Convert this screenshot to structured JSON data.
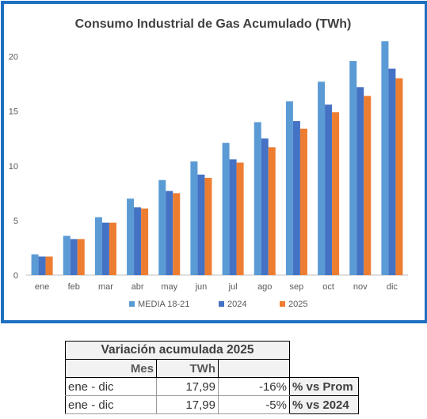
{
  "chart_data": {
    "type": "bar",
    "title": "Consumo Industrial de Gas Acumulado (TWh)",
    "xlabel": "",
    "ylabel": "",
    "categories": [
      "ene",
      "feb",
      "mar",
      "abr",
      "may",
      "jun",
      "jul",
      "ago",
      "sep",
      "oct",
      "nov",
      "dic"
    ],
    "series": [
      {
        "name": "MEDIA 18-21",
        "color": "#5b9bd5",
        "values": [
          1.9,
          3.6,
          5.3,
          7.0,
          8.7,
          10.4,
          12.1,
          14.0,
          15.9,
          17.7,
          19.6,
          21.4
        ]
      },
      {
        "name": "2024",
        "color": "#4472c4",
        "values": [
          1.7,
          3.3,
          4.8,
          6.2,
          7.7,
          9.2,
          10.6,
          12.5,
          14.1,
          15.6,
          17.2,
          18.9
        ]
      },
      {
        "name": "2025",
        "color": "#ed7d31",
        "values": [
          1.7,
          3.3,
          4.8,
          6.1,
          7.5,
          8.9,
          10.3,
          11.7,
          13.4,
          14.9,
          16.4,
          18.0
        ]
      }
    ],
    "ylim": [
      0,
      22.5
    ],
    "yticks": [
      0,
      5,
      10,
      15,
      20
    ],
    "grid": false,
    "legend": "bottom"
  },
  "table": {
    "caption": "Variación acumulada 2025",
    "headers": {
      "mes": "Mes",
      "twh": "TWh"
    },
    "rows": [
      {
        "mes": "ene - dic",
        "twh": "17,99",
        "pct": "-16%",
        "note": "% vs Prom"
      },
      {
        "mes": "ene - dic",
        "twh": "17,99",
        "pct": "-5%",
        "note": "% vs 2024"
      }
    ]
  }
}
